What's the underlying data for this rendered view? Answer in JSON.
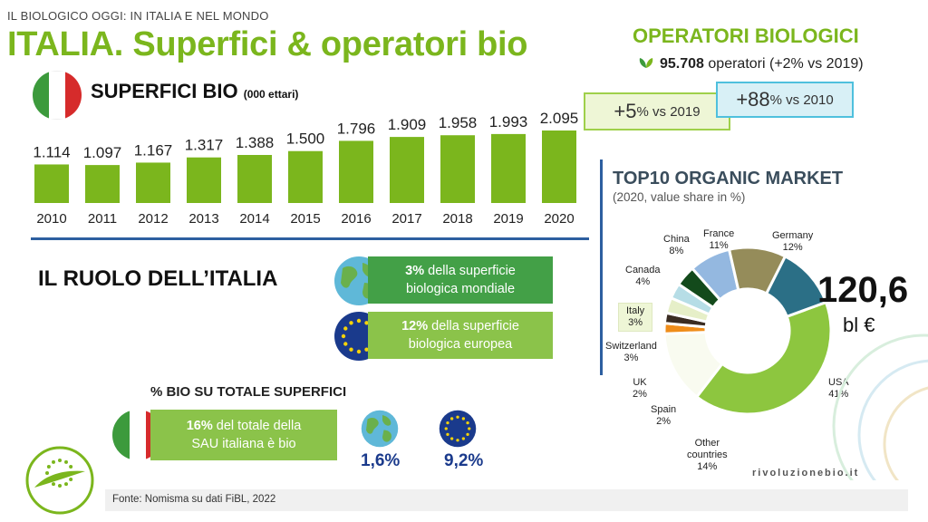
{
  "header": {
    "kicker": "IL BIOLOGICO OGGI: IN ITALIA E NEL MONDO",
    "title": "ITALIA. Superfici & operatori bio"
  },
  "operators": {
    "title": "OPERATORI BIOLOGICI",
    "value": "95.708",
    "text": "operatori (+2% vs 2019)",
    "icon": "leaf-icon"
  },
  "surfaces": {
    "title": "SUPERFICI BIO",
    "unit": "(000 ettari)",
    "flag_colors": [
      "#3c9a3c",
      "#ffffff",
      "#d62b2b"
    ]
  },
  "callouts": {
    "vs2019_big": "+5",
    "vs2019_rest": "% vs 2019",
    "vs2010_big": "+88",
    "vs2010_rest": "% vs 2010"
  },
  "chart_data": [
    {
      "type": "bar",
      "categories": [
        "2010",
        "2011",
        "2012",
        "2013",
        "2014",
        "2015",
        "2016",
        "2017",
        "2018",
        "2019",
        "2020"
      ],
      "values": [
        1114,
        1097,
        1167,
        1317,
        1388,
        1500,
        1796,
        1909,
        1958,
        1993,
        2095
      ],
      "data_labels": [
        "1.114",
        "1.097",
        "1.167",
        "1.317",
        "1.388",
        "1.500",
        "1.796",
        "1.909",
        "1.958",
        "1.993",
        "2.095"
      ],
      "title": "SUPERFICI BIO",
      "ylabel": "",
      "xlabel": "",
      "ylim": [
        0,
        2200
      ],
      "grid": false,
      "bar_color": "#7bb61d"
    },
    {
      "type": "pie",
      "title": "TOP10 ORGANIC MARKET",
      "subtitle": "(2020, value share in %)",
      "center_note": "",
      "slices": [
        {
          "name": "USA",
          "value": 41,
          "label": "41%",
          "color": "#8dc63f"
        },
        {
          "name": "Other countries",
          "value": 14,
          "label": "14%",
          "color": "#f9fbf0"
        },
        {
          "name": "Spain",
          "value": 2,
          "label": "2%",
          "color": "#ef8d1a"
        },
        {
          "name": "UK",
          "value": 2,
          "label": "2%",
          "color": "#3a2c22"
        },
        {
          "name": "Switzerland",
          "value": 3,
          "label": "3%",
          "color": "#e6efc8"
        },
        {
          "name": "Italy",
          "value": 3,
          "label": "3%",
          "color": "#b6dde6"
        },
        {
          "name": "Canada",
          "value": 4,
          "label": "4%",
          "color": "#134a1b"
        },
        {
          "name": "China",
          "value": 8,
          "label": "8%",
          "color": "#94b8e0"
        },
        {
          "name": "France",
          "value": 11,
          "label": "11%",
          "color": "#958c5a"
        },
        {
          "name": "Germany",
          "value": 12,
          "label": "12%",
          "color": "#2b6f86"
        }
      ]
    }
  ],
  "role": {
    "title": "IL RUOLO DELL’ITALIA",
    "world_bold": "3%",
    "world_line1": " della superficie",
    "world_line2": "biologica mondiale",
    "eu_bold": "12%",
    "eu_line1": " della superficie",
    "eu_line2": "biologica europea"
  },
  "pct_bio": {
    "title": "% BIO  SU TOTALE SUPERFICI",
    "sau_bold": "16%",
    "sau_line1": " del totale della",
    "sau_line2": "SAU italiana è bio",
    "world_value": "1,6%",
    "eu_value": "9,2%"
  },
  "market": {
    "total": "120,6",
    "unit": "bl €"
  },
  "brand": "rivoluzionebio.it",
  "footer": "Fonte: Nomisma su dati FiBL, 2022"
}
